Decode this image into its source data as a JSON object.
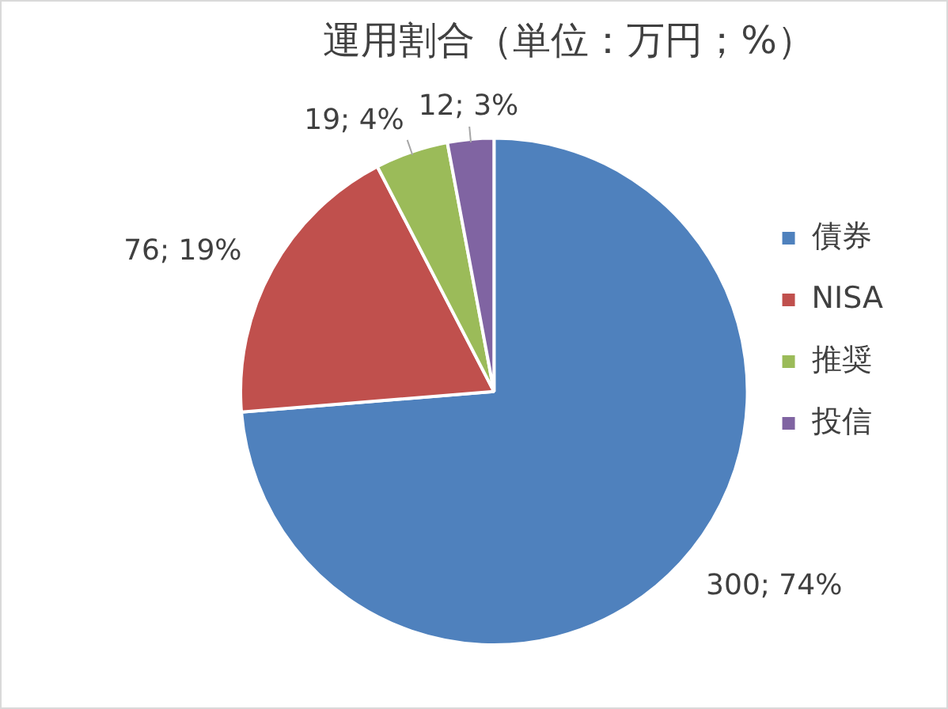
{
  "chart_data": {
    "type": "pie",
    "title": "運用割合（単位：万円；%）",
    "categories": [
      "債券",
      "NISA",
      "推奨",
      "投信"
    ],
    "values": [
      300,
      76,
      19,
      12
    ],
    "colors": [
      "#4f81bd",
      "#c0504d",
      "#9bbb59",
      "#8064a2"
    ],
    "value_labels": [
      "300; 74%",
      "76; 19%",
      "19; 4%",
      "12; 3%"
    ],
    "legend": "right"
  }
}
